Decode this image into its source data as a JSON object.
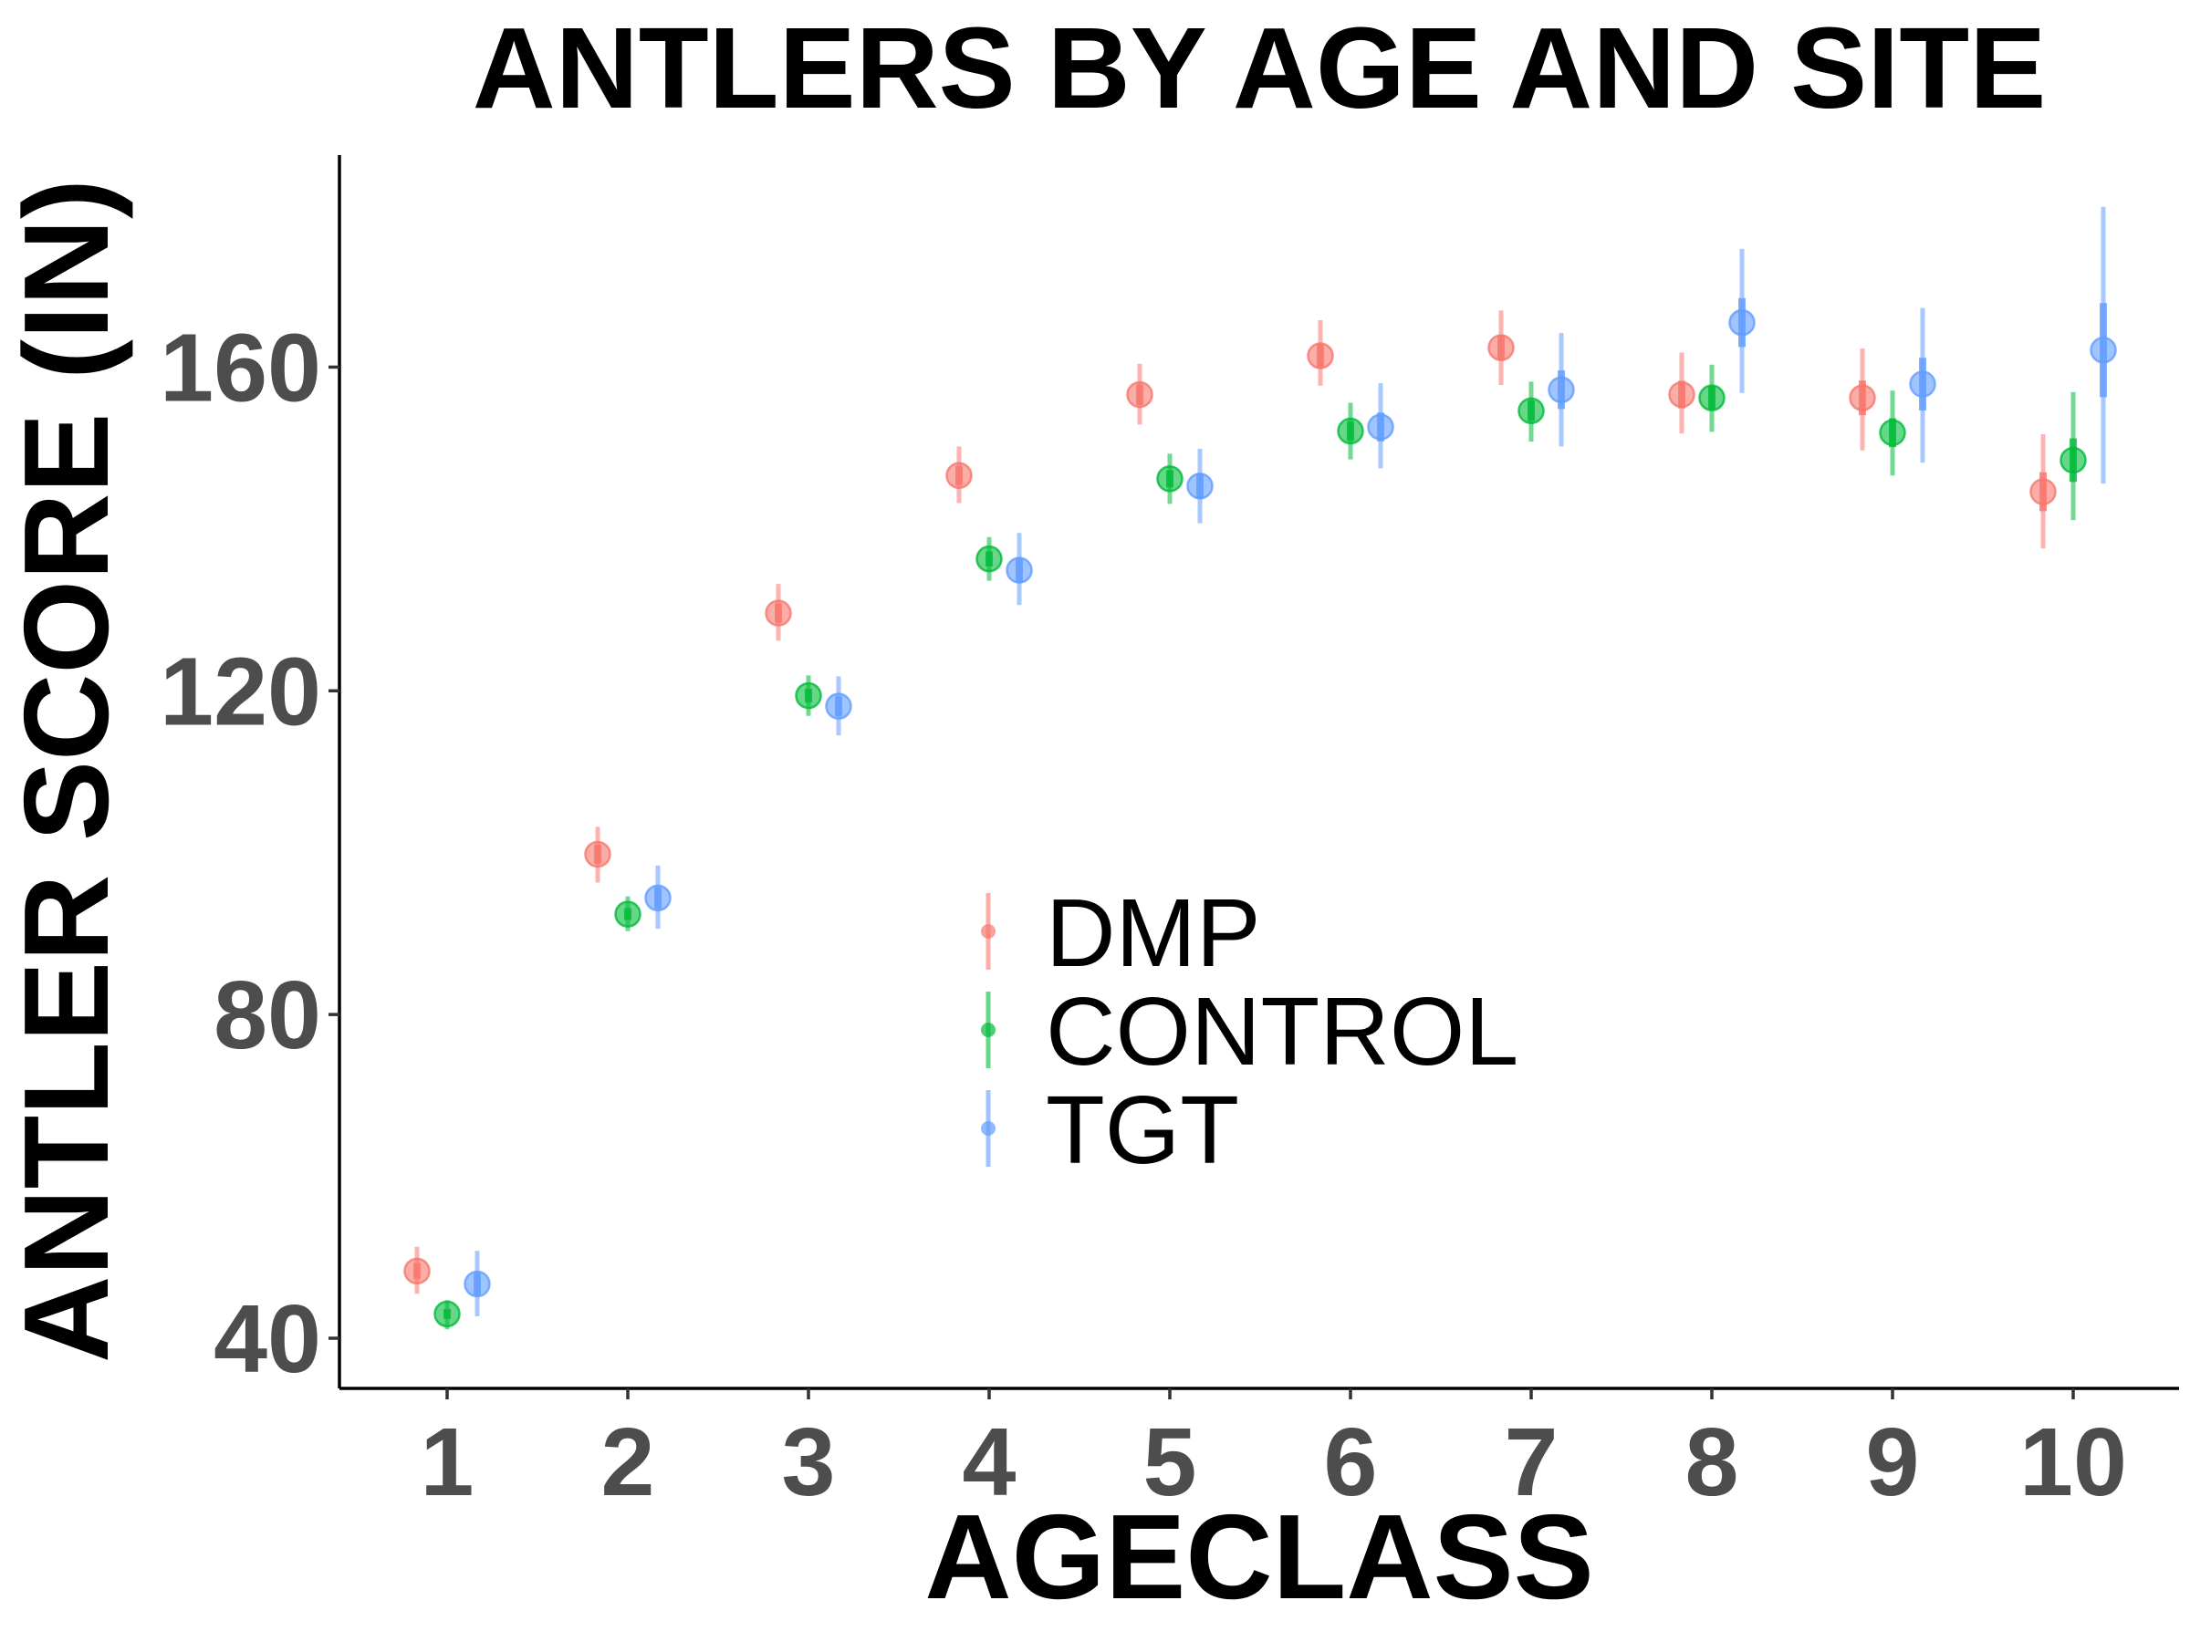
{
  "chart_data": {
    "type": "scatter",
    "title": "ANTLERS BY AGE AND SITE",
    "xlabel": "AGECLASS",
    "ylabel": "ANTLER SCORE (IN)",
    "categories": [
      "1",
      "2",
      "3",
      "4",
      "5",
      "6",
      "7",
      "8",
      "9",
      "10"
    ],
    "yticks": [
      40,
      80,
      120,
      160
    ],
    "ylim": [
      33.8,
      186.2
    ],
    "grid": false,
    "legend_position": "center",
    "series": [
      {
        "name": "DMP",
        "color": "#F8766D",
        "values": [
          48.3,
          99.8,
          129.6,
          146.6,
          156.6,
          161.4,
          162.4,
          156.6,
          156.2,
          144.6
        ],
        "ci_outer_low": [
          45.5,
          96.3,
          126.2,
          143.2,
          152.9,
          157.7,
          157.8,
          151.8,
          149.7,
          137.6
        ],
        "ci_outer_high": [
          51.3,
          103.2,
          133.2,
          150.2,
          160.4,
          165.8,
          167.0,
          161.8,
          162.3,
          151.7
        ]
      },
      {
        "name": "CONTROL",
        "color": "#00BA38",
        "values": [
          43.0,
          92.4,
          119.4,
          136.3,
          146.2,
          152.1,
          154.6,
          156.2,
          151.9,
          148.5
        ],
        "ci_outer_low": [
          41.1,
          90.3,
          116.9,
          133.6,
          143.1,
          148.6,
          150.8,
          152.0,
          146.6,
          141.1
        ],
        "ci_outer_high": [
          44.7,
          94.6,
          121.9,
          139.0,
          149.3,
          155.6,
          158.2,
          160.3,
          157.1,
          156.9
        ]
      },
      {
        "name": "TGT",
        "color": "#619CFF",
        "values": [
          46.7,
          94.4,
          118.1,
          134.9,
          145.3,
          152.6,
          157.2,
          165.5,
          157.9,
          162.1
        ],
        "ci_outer_low": [
          42.7,
          90.6,
          114.5,
          130.6,
          140.7,
          147.5,
          150.2,
          156.8,
          148.2,
          145.6
        ],
        "ci_outer_high": [
          50.8,
          98.4,
          121.8,
          139.5,
          149.9,
          158.0,
          164.2,
          174.6,
          167.3,
          179.8
        ]
      }
    ]
  }
}
